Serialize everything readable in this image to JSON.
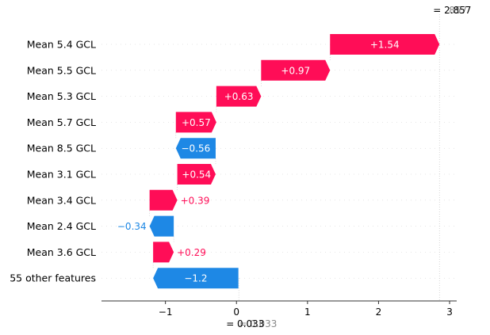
{
  "colors": {
    "positive": "#ff0d57",
    "negative": "#1e88e5",
    "axis": "#333333",
    "ghost_text": "#888888"
  },
  "chart_data": {
    "type": "waterfall",
    "base_value": 0.033,
    "base_label": "= 0.033",
    "base_ghost_label": "= 0.033",
    "final_value": 2.857,
    "final_label": "= 2.857",
    "final_ghost_label": "857",
    "features": [
      {
        "name": "Mean 5.4 GCL",
        "value": 1.54,
        "label": "+1.54"
      },
      {
        "name": "Mean 5.5 GCL",
        "value": 0.97,
        "label": "+0.97"
      },
      {
        "name": "Mean 5.3 GCL",
        "value": 0.63,
        "label": "+0.63"
      },
      {
        "name": "Mean 5.7 GCL",
        "value": 0.57,
        "label": "+0.57"
      },
      {
        "name": "Mean 8.5 GCL",
        "value": -0.56,
        "label": "−0.56"
      },
      {
        "name": "Mean 3.1 GCL",
        "value": 0.54,
        "label": "+0.54"
      },
      {
        "name": "Mean 3.4 GCL",
        "value": 0.39,
        "label": "+0.39"
      },
      {
        "name": "Mean 2.4 GCL",
        "value": -0.34,
        "label": "−0.34"
      },
      {
        "name": "Mean 3.6 GCL",
        "value": 0.29,
        "label": "+0.29"
      },
      {
        "name": "55 other features",
        "value": -1.2,
        "label": "−1.2"
      }
    ],
    "xticks": [
      -1,
      0,
      1,
      2,
      3
    ],
    "xtick_labels": [
      "−1",
      "0",
      "1",
      "2",
      "3"
    ],
    "xlim": [
      -1.9,
      3.1
    ]
  }
}
